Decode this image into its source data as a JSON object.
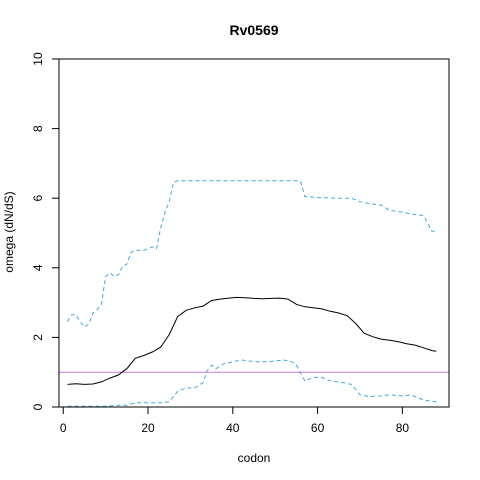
{
  "chart_data": {
    "type": "line",
    "title": "Rv0569",
    "xlabel": "codon",
    "ylabel": "omega (dN/dS)",
    "xlim": [
      -1,
      91
    ],
    "ylim": [
      0,
      10
    ],
    "x_ticks": [
      0,
      20,
      40,
      60,
      80
    ],
    "y_ticks": [
      0,
      2,
      4,
      6,
      8,
      10
    ],
    "grid": false,
    "legend": "none",
    "reference_line": {
      "y": 1,
      "color": "#c77cdb"
    },
    "series": [
      {
        "role": "estimate",
        "color": "#000000",
        "dash": "solid",
        "x": [
          1,
          3,
          5,
          7,
          9,
          11,
          13,
          15,
          17,
          19,
          21,
          23,
          25,
          27,
          29,
          31,
          33,
          35,
          37,
          39,
          41,
          43,
          45,
          47,
          49,
          51,
          53,
          55,
          57,
          59,
          61,
          63,
          65,
          67,
          69,
          71,
          73,
          75,
          77,
          79,
          81,
          83,
          85,
          87,
          88
        ],
        "y": [
          0.65,
          0.67,
          0.65,
          0.66,
          0.72,
          0.83,
          0.92,
          1.1,
          1.4,
          1.48,
          1.58,
          1.72,
          2.08,
          2.6,
          2.78,
          2.85,
          2.9,
          3.06,
          3.1,
          3.13,
          3.15,
          3.14,
          3.12,
          3.11,
          3.12,
          3.13,
          3.1,
          2.95,
          2.88,
          2.85,
          2.82,
          2.75,
          2.7,
          2.62,
          2.4,
          2.12,
          2.02,
          1.95,
          1.92,
          1.88,
          1.82,
          1.78,
          1.7,
          1.62,
          1.6
        ]
      },
      {
        "role": "upper-bound",
        "color": "#3fa9e0",
        "dash": "dashed",
        "x": [
          1,
          2,
          3,
          4,
          5,
          6,
          7,
          8,
          9,
          10,
          11,
          12,
          13,
          14,
          15,
          16,
          17,
          18,
          19,
          20,
          21,
          22,
          23,
          24,
          25,
          26,
          27,
          30,
          35,
          40,
          45,
          50,
          55,
          56,
          57,
          60,
          65,
          68,
          70,
          72,
          75,
          77,
          80,
          82,
          85,
          87,
          88
        ],
        "y": [
          2.45,
          2.65,
          2.65,
          2.45,
          2.3,
          2.38,
          2.7,
          2.8,
          2.95,
          3.75,
          3.85,
          3.75,
          3.8,
          4.05,
          4.1,
          4.45,
          4.5,
          4.5,
          4.5,
          4.55,
          4.6,
          4.55,
          5.15,
          5.6,
          5.9,
          6.45,
          6.5,
          6.5,
          6.5,
          6.5,
          6.5,
          6.5,
          6.5,
          6.48,
          6.05,
          6.02,
          6.0,
          6.0,
          5.9,
          5.85,
          5.8,
          5.65,
          5.6,
          5.55,
          5.5,
          5.05,
          5.05
        ]
      },
      {
        "role": "lower-bound",
        "color": "#3fa9e0",
        "dash": "dashed",
        "x": [
          1,
          5,
          10,
          13,
          15,
          17,
          19,
          21,
          23,
          25,
          27,
          29,
          31,
          33,
          34,
          35,
          36,
          38,
          40,
          42,
          44,
          46,
          48,
          50,
          52,
          54,
          55,
          57,
          59,
          61,
          63,
          66,
          68,
          70,
          72,
          75,
          77,
          80,
          82,
          85,
          88
        ],
        "y": [
          0.02,
          0.02,
          0.02,
          0.05,
          0.05,
          0.12,
          0.12,
          0.12,
          0.12,
          0.15,
          0.45,
          0.55,
          0.55,
          0.7,
          1.05,
          1.2,
          1.1,
          1.25,
          1.3,
          1.35,
          1.32,
          1.3,
          1.3,
          1.32,
          1.35,
          1.3,
          1.2,
          0.75,
          0.85,
          0.85,
          0.75,
          0.7,
          0.65,
          0.35,
          0.3,
          0.32,
          0.35,
          0.32,
          0.35,
          0.2,
          0.15
        ]
      }
    ]
  }
}
